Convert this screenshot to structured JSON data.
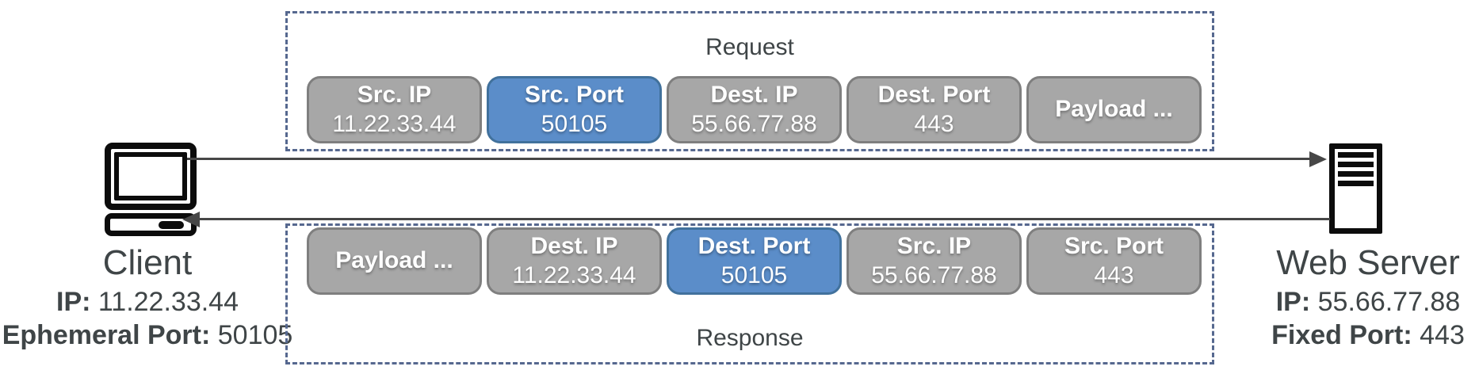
{
  "client": {
    "name": "Client",
    "ip_label": "IP:",
    "ip_value": "11.22.33.44",
    "port_label": "Ephemeral Port:",
    "port_value": "50105"
  },
  "server": {
    "name": "Web Server",
    "ip_label": "IP:",
    "ip_value": "55.66.77.88",
    "port_label": "Fixed Port:",
    "port_value": "443"
  },
  "request": {
    "title": "Request",
    "fields": [
      {
        "label": "Src. IP",
        "value": "11.22.33.44",
        "highlight": false
      },
      {
        "label": "Src. Port",
        "value": "50105",
        "highlight": true
      },
      {
        "label": "Dest. IP",
        "value": "55.66.77.88",
        "highlight": false
      },
      {
        "label": "Dest. Port",
        "value": "443",
        "highlight": false
      },
      {
        "label": "Payload ...",
        "value": "",
        "highlight": false
      }
    ]
  },
  "response": {
    "title": "Response",
    "fields": [
      {
        "label": "Payload ...",
        "value": "",
        "highlight": false
      },
      {
        "label": "Dest. IP",
        "value": "11.22.33.44",
        "highlight": false
      },
      {
        "label": "Dest. Port",
        "value": "50105",
        "highlight": true
      },
      {
        "label": "Src. IP",
        "value": "55.66.77.88",
        "highlight": false
      },
      {
        "label": "Src. Port",
        "value": "443",
        "highlight": false
      }
    ]
  },
  "icons": {
    "client": "desktop-computer-icon",
    "server": "server-tower-icon",
    "request_arrow": "right-arrow",
    "response_arrow": "left-arrow"
  },
  "colors": {
    "field_gray": "#a7a7a7",
    "field_gray_border": "#7f7f7f",
    "field_blue": "#5b8dc9",
    "field_blue_border": "#41719c",
    "dashed_border": "#56688f",
    "text_dark": "#3f4547",
    "arrow": "#474747",
    "icon_black": "#0c0c0c",
    "text_white": "#ffffff"
  }
}
